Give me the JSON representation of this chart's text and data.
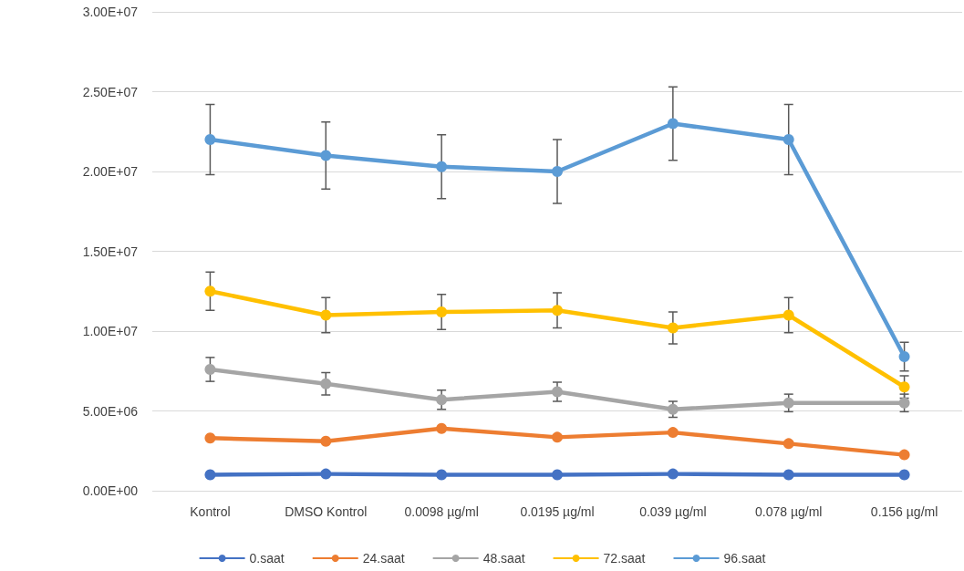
{
  "chart_data": {
    "type": "line",
    "categories": [
      "Kontrol",
      "DMSO Kontrol",
      "0.0098 µg/ml",
      "0.0195 µg/ml",
      "0.039 µg/ml",
      "0.078 µg/ml",
      "0.156 µg/ml"
    ],
    "series": [
      {
        "name": "0.saat",
        "color": "#4472c4",
        "values": [
          1000000.0,
          1050000.0,
          1000000.0,
          1000000.0,
          1050000.0,
          1000000.0,
          1000000.0
        ]
      },
      {
        "name": "24.saat",
        "color": "#ed7d31",
        "values": [
          3300000.0,
          3100000.0,
          3900000.0,
          3350000.0,
          3650000.0,
          2950000.0,
          2250000.0
        ]
      },
      {
        "name": "48.saat",
        "color": "#a5a5a5",
        "values": [
          7600000.0,
          6700000.0,
          5700000.0,
          6200000.0,
          5100000.0,
          5500000.0,
          5500000.0
        ],
        "errors": [
          750000.0,
          700000.0,
          600000.0,
          600000.0,
          500000.0,
          550000.0,
          550000.0
        ]
      },
      {
        "name": "72.saat",
        "color": "#ffc000",
        "values": [
          12500000.0,
          11000000.0,
          11200000.0,
          11300000.0,
          10200000.0,
          11000000.0,
          6500000.0
        ],
        "errors": [
          1200000.0,
          1100000.0,
          1100000.0,
          1100000.0,
          1000000.0,
          1100000.0,
          700000.0
        ]
      },
      {
        "name": "96.saat",
        "color": "#5b9bd5",
        "values": [
          22000000.0,
          21000000.0,
          20300000.0,
          20000000.0,
          23000000.0,
          22000000.0,
          8400000.0
        ],
        "errors": [
          2200000.0,
          2100000.0,
          2000000.0,
          2000000.0,
          2300000.0,
          2200000.0,
          900000.0
        ]
      }
    ],
    "ylim": [
      0,
      30000000.0
    ],
    "yticks": [
      {
        "value": 0,
        "label": "0.00E+00"
      },
      {
        "value": 5000000.0,
        "label": "5.00E+06"
      },
      {
        "value": 10000000.0,
        "label": "1.00E+07"
      },
      {
        "value": 15000000.0,
        "label": "1.50E+07"
      },
      {
        "value": 20000000.0,
        "label": "2.00E+07"
      },
      {
        "value": 25000000.0,
        "label": "2.50E+07"
      },
      {
        "value": 30000000.0,
        "label": "3.00E+07"
      }
    ],
    "grid": "y",
    "legend": "bottom",
    "marker": "circle",
    "line_style": "solid"
  }
}
